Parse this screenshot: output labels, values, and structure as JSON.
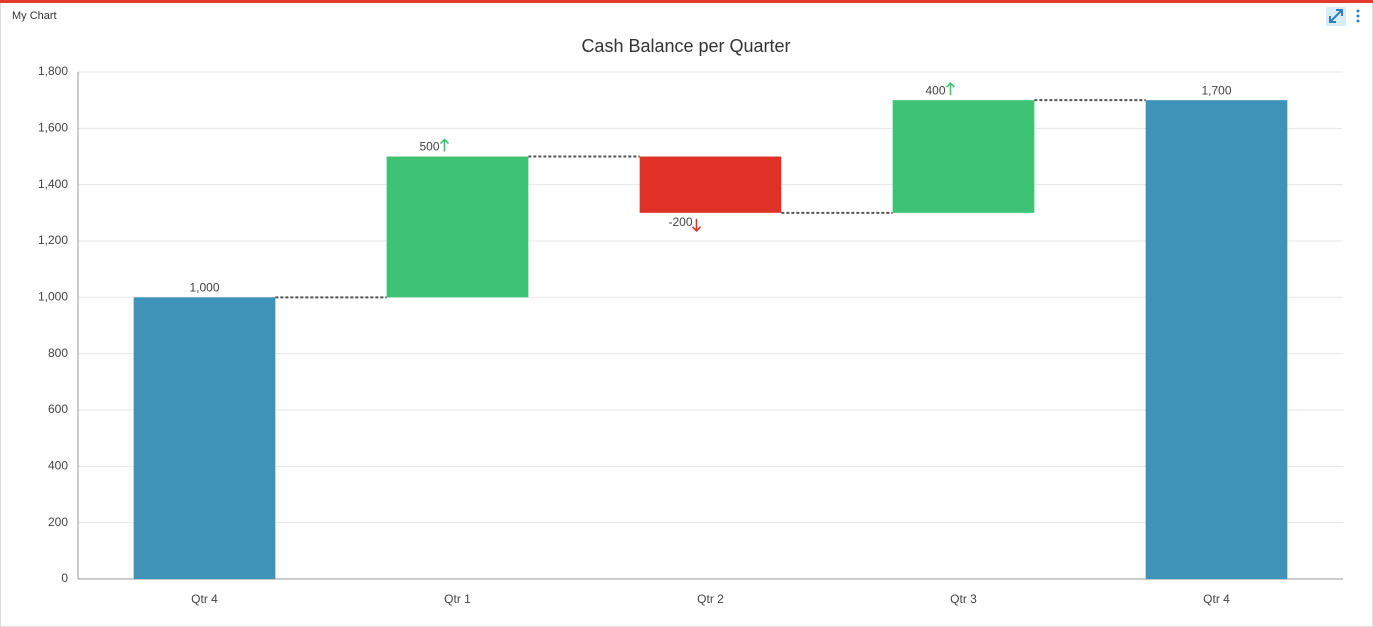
{
  "panel_title": "My Chart",
  "chart_data": {
    "type": "waterfall",
    "title": "Cash Balance per Quarter",
    "categories": [
      "Qtr 4",
      "Qtr 1",
      "Qtr 2",
      "Qtr 3",
      "Qtr 4"
    ],
    "values": [
      1000,
      500,
      -200,
      400,
      1700
    ],
    "value_labels": [
      "1,000",
      "500",
      "-200",
      "400",
      "1,700"
    ],
    "measure": [
      "total",
      "relative",
      "relative",
      "relative",
      "total"
    ],
    "colors": {
      "total": "#3f93b8",
      "increase": "#3dc373",
      "decrease": "#e03127"
    },
    "ylim": [
      0,
      1800
    ],
    "yticks": [
      0,
      200,
      400,
      600,
      800,
      {
        "value": 1000,
        "label": "1,000"
      },
      {
        "value": 1200,
        "label": "1,200"
      },
      {
        "value": 1400,
        "label": "1,400"
      },
      {
        "value": 1600,
        "label": "1,600"
      },
      {
        "value": 1800,
        "label": "1,800"
      }
    ],
    "grid": true
  }
}
